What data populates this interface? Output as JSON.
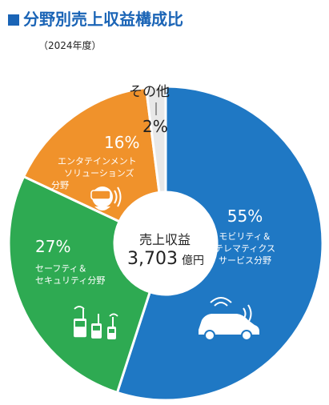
{
  "header": {
    "title": "分野別売上収益構成比",
    "subtitle": "（2024年度）"
  },
  "center": {
    "label": "売上収益",
    "value": "3,703",
    "unit": "億円"
  },
  "colors": {
    "mobility": "#1f78c4",
    "safety": "#2eaa52",
    "entertainment": "#f0922b",
    "other": "#e8e8e8",
    "title": "#1a64b6"
  },
  "segments": [
    {
      "name_lines": [
        "モビリティ＆",
        "テレマティクス",
        "サービス分野"
      ],
      "pct_label": "55%",
      "icon": "car-icon"
    },
    {
      "name_lines": [
        "セーフティ＆",
        "セキュリティ分野"
      ],
      "pct_label": "27%",
      "icon": "radio-icon"
    },
    {
      "name_lines": [
        "エンタテインメント",
        "ソリューションズ",
        "分野"
      ],
      "pct_label": "16%",
      "icon": "vr-headset-icon"
    },
    {
      "name_lines": [
        "その他"
      ],
      "pct_label": "2%",
      "icon": ""
    }
  ],
  "chart_data": {
    "type": "pie",
    "title": "分野別売上収益構成比",
    "subtitle": "（2024年度）",
    "categories": [
      "モビリティ＆テレマティクスサービス分野",
      "セーフティ＆セキュリティ分野",
      "エンタテインメントソリューションズ分野",
      "その他"
    ],
    "values": [
      55,
      27,
      16,
      2
    ],
    "center_text": "売上収益 3,703 億円"
  }
}
